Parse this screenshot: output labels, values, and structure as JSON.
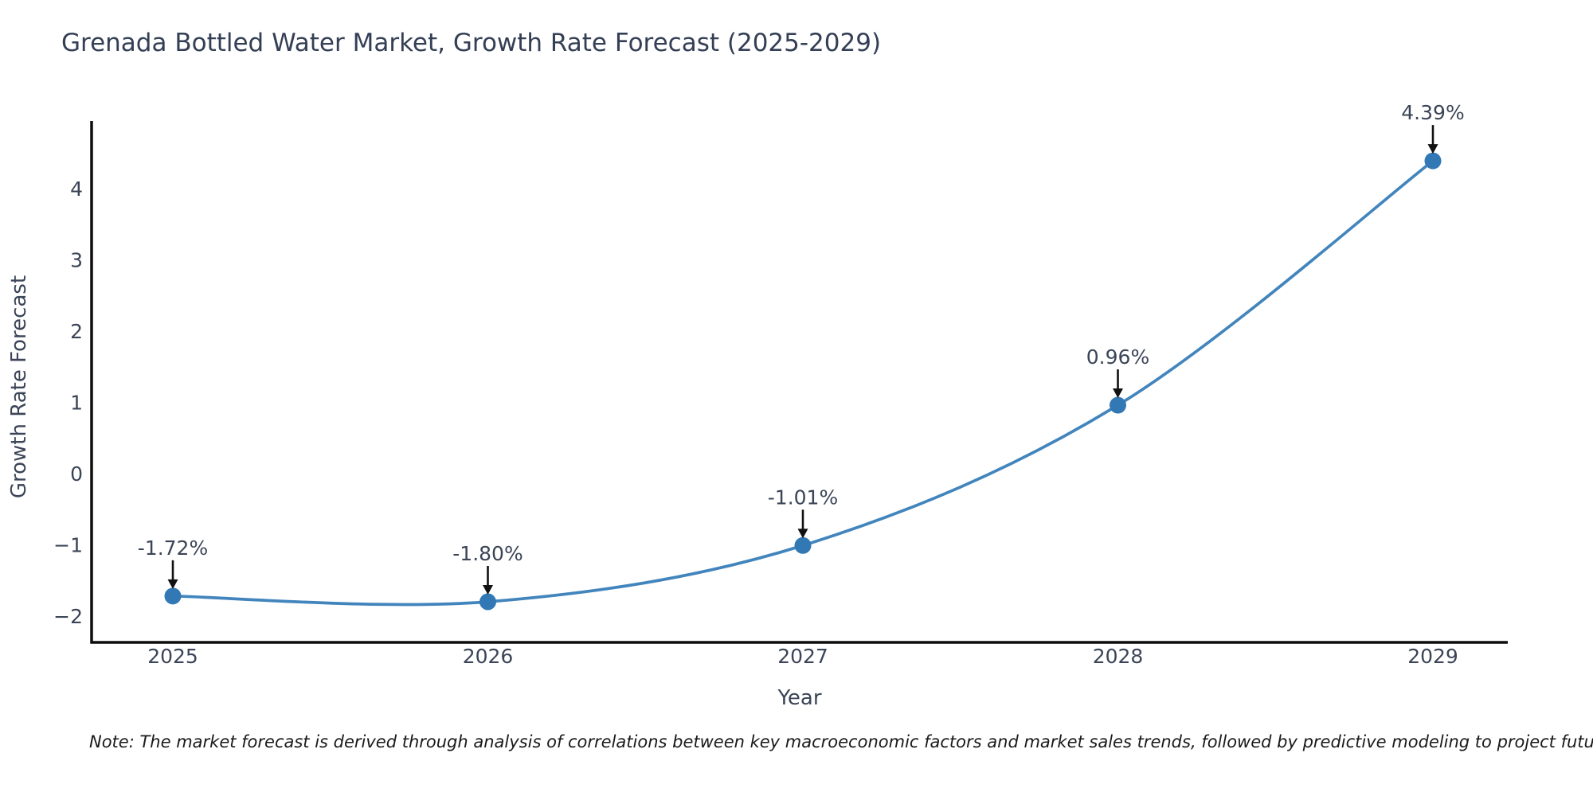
{
  "page": {
    "background": "#ffffff"
  },
  "chart_data": {
    "type": "line",
    "title": "Grenada Bottled Water Market, Growth Rate Forecast (2025-2029)",
    "xlabel": "Year",
    "ylabel": "Growth Rate Forecast",
    "categories": [
      "2025",
      "2026",
      "2027",
      "2028",
      "2029"
    ],
    "series": [
      {
        "name": "Growth Rate Forecast",
        "values": [
          -1.72,
          -1.8,
          -1.01,
          0.96,
          4.39
        ]
      }
    ],
    "point_labels": [
      "-1.72%",
      "-1.80%",
      "-1.01%",
      "0.96%",
      "4.39%"
    ],
    "ytick_values": [
      -2,
      -1,
      0,
      1,
      2,
      3,
      4
    ],
    "ytick_labels": [
      "−2",
      "−1",
      "0",
      "1",
      "2",
      "3",
      "4"
    ],
    "ylim": [
      -2.37,
      4.95
    ],
    "grid": false,
    "legend_position": "none",
    "line_smoothing": "spline",
    "note": "Note: The market forecast is derived through analysis of correlations between key macroeconomic factors and market sales trends, followed by predictive modeling to project future sales",
    "colors": {
      "line": "#4285bd",
      "marker": "#3178b5",
      "axis": "#0d0d0d",
      "tick_text": "#3b4557",
      "title_text": "#343f55",
      "annotation_text": "#3b4557",
      "annotation_arrow": "#111111",
      "note_text": "#1a1a1a"
    }
  }
}
